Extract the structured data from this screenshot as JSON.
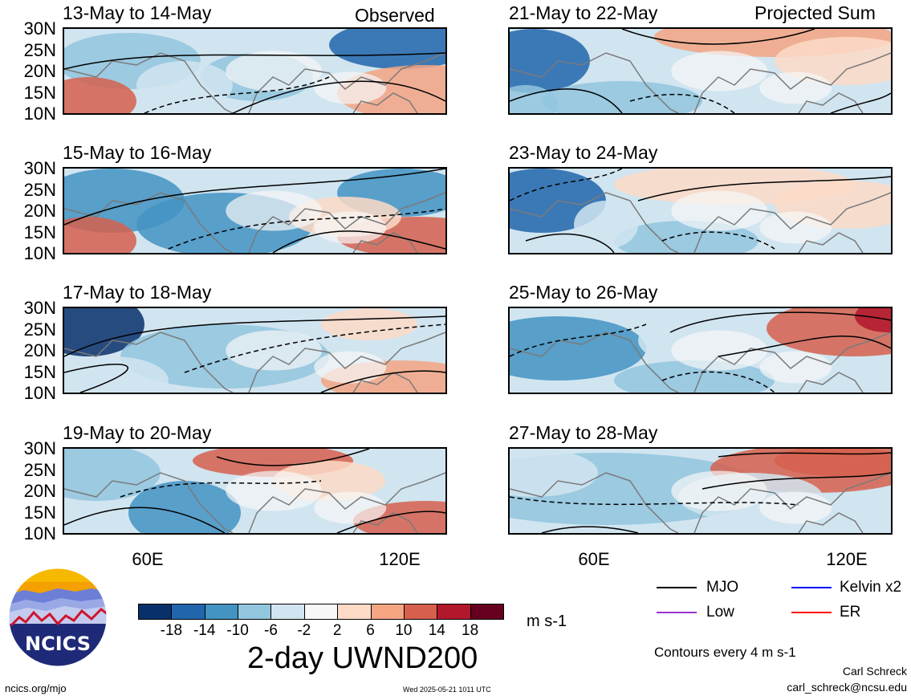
{
  "header": {
    "left_label": "Observed",
    "right_label": "Projected Sum"
  },
  "lat_ticks": [
    "30N",
    "25N",
    "20N",
    "15N",
    "10N"
  ],
  "lon_ticks": [
    "60E",
    "120E"
  ],
  "panels": [
    {
      "title": "13-May to 14-May",
      "column": "left"
    },
    {
      "title": "15-May to 16-May",
      "column": "left"
    },
    {
      "title": "17-May to 18-May",
      "column": "left"
    },
    {
      "title": "19-May to 20-May",
      "column": "left"
    },
    {
      "title": "21-May to 22-May",
      "column": "right"
    },
    {
      "title": "23-May to 24-May",
      "column": "right"
    },
    {
      "title": "25-May to 26-May",
      "column": "right"
    },
    {
      "title": "27-May to 28-May",
      "column": "right"
    }
  ],
  "colorbar": {
    "colors": [
      "#08306b",
      "#2166ac",
      "#4393c3",
      "#92c5de",
      "#d1e5f0",
      "#f7f7f7",
      "#fddbc7",
      "#f4a582",
      "#d6604d",
      "#b2182b",
      "#67001f"
    ],
    "labels": [
      "-18",
      "-14",
      "-10",
      "-6",
      "-2",
      "2",
      "6",
      "10",
      "14",
      "18"
    ],
    "units": "m s-1",
    "title": "2-day UWND200"
  },
  "legend": {
    "items": [
      {
        "label": "MJO",
        "color": "#000000"
      },
      {
        "label": "Kelvin x2",
        "color": "#0000ff"
      },
      {
        "label": "Low",
        "color": "#9932cc"
      },
      {
        "label": "ER",
        "color": "#ff0000"
      }
    ],
    "contour_note": "Contours every 4 m s-1"
  },
  "logo": {
    "text": "NCICS"
  },
  "footer": {
    "url": "ncics.org/mjo",
    "timestamp": "Wed 2025-05-21 1011 UTC",
    "author": "Carl Schreck",
    "email": "carl_schreck@ncsu.edu"
  }
}
